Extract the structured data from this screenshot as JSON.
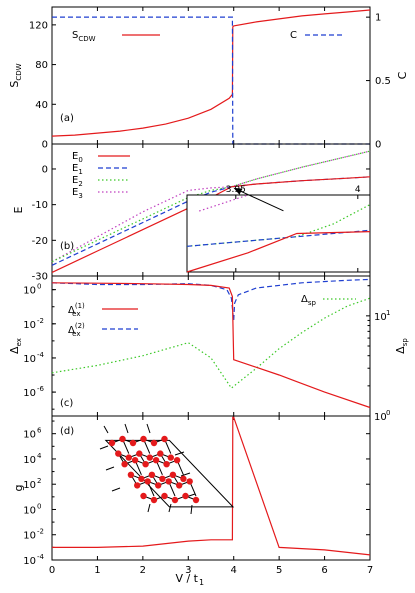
{
  "colors": {
    "red": "#e41a1c",
    "blue": "#1f3fd0",
    "green": "#3cc828",
    "magenta": "#c040c0",
    "axis": "#000000"
  },
  "xaxis": {
    "label": "V / t",
    "label_sub": "1",
    "range": [
      0,
      7
    ],
    "ticks": [
      "0",
      "1",
      "2",
      "3",
      "4",
      "5",
      "6",
      "7"
    ]
  },
  "chart_data": [
    {
      "panel": "(a)",
      "type": "line",
      "ylabel_left": "S",
      "ylabel_left_sub": "CDW",
      "ylabel_right": "C",
      "ylim_left": [
        0,
        138
      ],
      "ylim_right": [
        0,
        1.08
      ],
      "yticks_left": [
        "0",
        "40",
        "80",
        "120"
      ],
      "yticks_right": [
        "0",
        "0.5",
        "1"
      ],
      "legend": [
        "S",
        "C"
      ],
      "legend_sub": [
        "CDW",
        ""
      ],
      "series": [
        {
          "name": "S_CDW",
          "axis": "left",
          "color": "red",
          "dash": "solid",
          "x": [
            0,
            0.5,
            1.0,
            1.5,
            2.0,
            2.5,
            3.0,
            3.5,
            3.9,
            3.97,
            3.98,
            4.0,
            4.5,
            5.0,
            5.5,
            6.0,
            6.5,
            7.0
          ],
          "y": [
            8,
            9,
            11,
            13,
            16,
            20,
            26,
            35,
            46,
            50,
            118,
            119,
            123,
            126,
            129,
            131,
            133,
            135
          ]
        },
        {
          "name": "C",
          "axis": "right",
          "color": "blue",
          "dash": "dashed",
          "x": [
            0,
            3.97,
            3.98,
            4.0,
            7.0
          ],
          "y": [
            1,
            1,
            0,
            0,
            0
          ]
        }
      ]
    },
    {
      "panel": "(b)",
      "type": "line",
      "ylabel_left": "E",
      "ylim_left": [
        -30,
        7
      ],
      "yticks_left": [
        "0",
        "-10",
        "-20",
        "-30"
      ],
      "legend": [
        "E",
        "E",
        "E",
        "E"
      ],
      "legend_sub": [
        "0",
        "1",
        "2",
        "3"
      ],
      "series": [
        {
          "name": "E0",
          "color": "red",
          "dash": "solid",
          "x": [
            0,
            1,
            2,
            3,
            3.5,
            3.95,
            4.5,
            5.5,
            6.5,
            7
          ],
          "y": [
            -29,
            -23,
            -17,
            -11,
            -8,
            -5,
            -4.2,
            -3.3,
            -2.6,
            -2.2
          ]
        },
        {
          "name": "E1",
          "color": "blue",
          "dash": "dashed",
          "x": [
            0,
            1,
            2,
            3,
            3.5,
            3.95,
            4.5,
            5.5,
            6.5,
            7
          ],
          "y": [
            -27,
            -21,
            -15,
            -9,
            -6.5,
            -5,
            -4.2,
            -3.3,
            -2.6,
            -2.2
          ]
        },
        {
          "name": "E2",
          "color": "green",
          "dash": "dotted",
          "x": [
            0,
            1,
            2,
            3,
            3.5,
            3.95,
            4.5,
            5.5,
            6.5,
            7
          ],
          "y": [
            -26,
            -20,
            -14,
            -8,
            -6,
            -5,
            -2.8,
            0.5,
            3.5,
            5
          ]
        },
        {
          "name": "E3",
          "color": "magenta",
          "dash": "dotted",
          "x": [
            0,
            1,
            2,
            3,
            3.5,
            3.95,
            4.5,
            5.5,
            6.5,
            7
          ],
          "y": [
            -26,
            -19,
            -12,
            -6,
            -5.3,
            -5,
            -2.8,
            0.5,
            3.5,
            5
          ]
        }
      ],
      "inset": {
        "xticks": [
          "3.95",
          "4"
        ],
        "xrange": [
          3.93,
          4.005
        ],
        "yrange": [
          -5.6,
          -4.4
        ],
        "series": [
          {
            "name": "E0",
            "color": "red",
            "dash": "solid",
            "x": [
              3.93,
              3.955,
              3.975,
              4.005
            ],
            "y": [
              -5.6,
              -5.3,
              -5.0,
              -4.97
            ]
          },
          {
            "name": "E1",
            "color": "blue",
            "dash": "dashed",
            "x": [
              3.93,
              4.005
            ],
            "y": [
              -5.2,
              -4.95
            ]
          },
          {
            "name": "E2",
            "color": "green",
            "dash": "dotted",
            "x": [
              3.93,
              3.975,
              3.99,
              4.005
            ],
            "y": [
              -5.2,
              -5.05,
              -4.85,
              -4.55
            ]
          },
          {
            "name": "E3",
            "color": "magenta",
            "dash": "dotted",
            "x": [
              3.935,
              3.955
            ],
            "y": [
              -4.65,
              -4.4
            ]
          }
        ]
      }
    },
    {
      "panel": "(c)",
      "type": "line",
      "ylabel_left": "Δ",
      "ylabel_left_sub": "ex",
      "ylabel_right": "Δ",
      "ylabel_right_sub": "sp",
      "ylog_left": true,
      "ylim_left_exp": [
        -7.4,
        0.8
      ],
      "yticks_left": [
        "10",
        "10",
        "10",
        "10"
      ],
      "yticks_left_exp": [
        "0",
        "-2",
        "-4",
        "-6"
      ],
      "ylog_right": true,
      "ylim_right": [
        1,
        25
      ],
      "yticks_right": [
        "10",
        "10"
      ],
      "yticks_right_exp": [
        "0",
        "1"
      ],
      "legend": [
        "Δ",
        "Δ",
        "Δ"
      ],
      "legend_sup": [
        "(1)",
        "(2)",
        ""
      ],
      "legend_sub": [
        "ex",
        "ex",
        "sp"
      ],
      "series": [
        {
          "name": "Δex(1)",
          "axis": "left",
          "color": "red",
          "dash": "solid",
          "x": [
            0,
            1,
            2,
            3,
            3.5,
            3.9,
            3.97,
            3.99,
            4.0,
            5.0,
            6.0,
            7.0
          ],
          "y_exp": [
            0.4,
            0.38,
            0.35,
            0.3,
            0.25,
            0.1,
            -0.4,
            -3.0,
            -4.1,
            -5.0,
            -6.0,
            -6.9
          ]
        },
        {
          "name": "Δex(2)",
          "axis": "left",
          "color": "blue",
          "dash": "dashed",
          "x": [
            0,
            1,
            2,
            3,
            3.5,
            3.85,
            3.95,
            3.99,
            4.0,
            4.02,
            4.1,
            4.5,
            5.5,
            6.5,
            7.0
          ],
          "y_exp": [
            0.4,
            0.3,
            0.3,
            0.35,
            0.25,
            0.0,
            -0.5,
            -1.6,
            -1.8,
            -0.8,
            -0.3,
            0.1,
            0.4,
            0.55,
            0.6
          ]
        },
        {
          "name": "Δsp",
          "axis": "right",
          "color": "green",
          "dash": "dotted",
          "x": [
            0,
            1,
            2,
            3,
            3.5,
            3.95,
            4.5,
            5.0,
            5.5,
            6.0,
            6.5,
            7.0
          ],
          "y": [
            2.7,
            3.2,
            4.0,
            5.4,
            3.8,
            1.9,
            3.0,
            4.7,
            6.8,
            9.5,
            12.5,
            15.0
          ]
        }
      ]
    },
    {
      "panel": "(d)",
      "type": "line",
      "ylabel_left": "g",
      "ylog_left": true,
      "ylim_left_exp": [
        -4,
        7.4
      ],
      "yticks_left": [
        "10",
        "10",
        "10",
        "10",
        "10",
        "10"
      ],
      "yticks_left_exp": [
        "6",
        "4",
        "2",
        "0",
        "-2",
        "-4"
      ],
      "series": [
        {
          "name": "g",
          "color": "red",
          "dash": "solid",
          "x": [
            0,
            1,
            2,
            2.5,
            3,
            3.5,
            3.9,
            3.97,
            3.98,
            4.0,
            5.0,
            6.0,
            7.0
          ],
          "y_exp": [
            -3.0,
            -3.0,
            -2.9,
            -2.7,
            -2.5,
            -2.4,
            -2.4,
            -2.4,
            7.3,
            7.3,
            -3.0,
            -3.2,
            -3.6
          ]
        }
      ]
    }
  ]
}
